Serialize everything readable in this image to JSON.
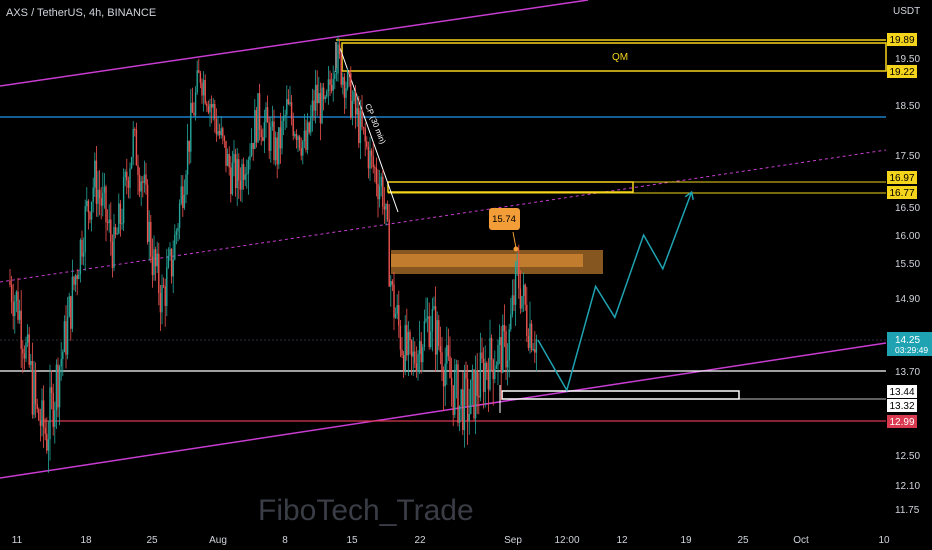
{
  "header": {
    "title": "AXS / TetherUS, 4h, BINANCE"
  },
  "watermark": "FiboTech_Trade",
  "colors": {
    "background": "#000000",
    "up_candle": "#26a69a",
    "down_candle": "#ef5350",
    "channel": "#c83cd2",
    "zone": "#f5d41c",
    "blue_line": "#2196f3",
    "orange_box": "#f29d38",
    "projection": "#1fa3b2",
    "support_red": "#d93a50"
  },
  "chart_data": {
    "type": "candlestick",
    "symbol": "AXS / TetherUS",
    "timeframe": "4h",
    "exchange": "BINANCE",
    "y_unit": "USDT",
    "x_tick_labels": [
      "11",
      "18",
      "25",
      "Aug",
      "8",
      "15",
      "22",
      "Sep",
      "12:00",
      "12",
      "19",
      "25",
      "Oct",
      "10"
    ],
    "y_tick_labels": [
      "19.50",
      "18.50",
      "17.50",
      "16.50",
      "16.00",
      "15.50",
      "14.90",
      "13.70",
      "12.50",
      "12.10",
      "11.75"
    ],
    "price_badges": [
      {
        "value": "19.89",
        "style": "zone"
      },
      {
        "value": "19.22",
        "style": "zone"
      },
      {
        "value": "16.97",
        "style": "zone"
      },
      {
        "value": "16.77",
        "style": "zone"
      },
      {
        "value": "14.25",
        "sub": "03:29:49",
        "style": "last"
      },
      {
        "value": "13.44",
        "style": "white"
      },
      {
        "value": "13.32",
        "style": "white"
      },
      {
        "value": "12.99",
        "style": "red"
      }
    ],
    "annotations": {
      "qm_label": "QM",
      "trendline_label": "CP (30 min)",
      "orange_callout": "15.74"
    },
    "price_path": [
      [
        "Jul 11",
        15.2
      ],
      [
        "Jul 12",
        14.8
      ],
      [
        "Jul 13",
        13.9
      ],
      [
        "Jul 14",
        13.1
      ],
      [
        "Jul 15",
        12.8
      ],
      [
        "Jul 16",
        13.6
      ],
      [
        "Jul 17",
        14.3
      ],
      [
        "Jul 18",
        15.3
      ],
      [
        "Jul 19",
        16.3
      ],
      [
        "Jul 20",
        17.0
      ],
      [
        "Jul 21",
        16.4
      ],
      [
        "Jul 22",
        15.7
      ],
      [
        "Jul 23",
        16.6
      ],
      [
        "Jul 24",
        17.8
      ],
      [
        "Jul 25",
        16.9
      ],
      [
        "Jul 26",
        15.6
      ],
      [
        "Jul 27",
        14.9
      ],
      [
        "Jul 28",
        15.5
      ],
      [
        "Jul 29",
        16.7
      ],
      [
        "Jul 30",
        18.1
      ],
      [
        "Jul 31",
        19.2
      ],
      [
        "Aug 1",
        18.6
      ],
      [
        "Aug 2",
        17.9
      ],
      [
        "Aug 3",
        17.2
      ],
      [
        "Aug 4",
        17.0
      ],
      [
        "Aug 5",
        17.6
      ],
      [
        "Aug 6",
        18.3
      ],
      [
        "Aug 7",
        18.0
      ],
      [
        "Aug 8",
        17.5
      ],
      [
        "Aug 9",
        18.4
      ],
      [
        "Aug 10",
        18.1
      ],
      [
        "Aug 11",
        17.6
      ],
      [
        "Aug 12",
        18.7
      ],
      [
        "Aug 13",
        18.3
      ],
      [
        "Aug 14",
        19.6
      ],
      [
        "Aug 15",
        19.1
      ],
      [
        "Aug 16",
        18.4
      ],
      [
        "Aug 17",
        17.8
      ],
      [
        "Aug 18",
        17.2
      ],
      [
        "Aug 19",
        16.8
      ],
      [
        "Aug 20",
        14.9
      ],
      [
        "Aug 21",
        14.2
      ],
      [
        "Aug 22",
        13.8
      ],
      [
        "Aug 23",
        14.3
      ],
      [
        "Aug 24",
        14.6
      ],
      [
        "Aug 25",
        14.1
      ],
      [
        "Aug 26",
        13.6
      ],
      [
        "Aug 27",
        13.3
      ],
      [
        "Aug 28",
        13.2
      ],
      [
        "Aug 29",
        13.6
      ],
      [
        "Aug 30",
        13.9
      ],
      [
        "Aug 31",
        14.0
      ],
      [
        "Sep 1",
        14.1
      ],
      [
        "Sep 2",
        15.3
      ],
      [
        "Sep 3",
        14.6
      ],
      [
        "Sep 4",
        14.25
      ]
    ],
    "projection_path": [
      [
        "Sep 4",
        14.25
      ],
      [
        "Sep 7",
        13.45
      ],
      [
        "Sep 10",
        15.1
      ],
      [
        "Sep 12",
        14.6
      ],
      [
        "Sep 15",
        16.0
      ],
      [
        "Sep 17",
        15.4
      ],
      [
        "Sep 20",
        16.77
      ]
    ],
    "zones": {
      "qm": [
        19.22,
        19.89
      ],
      "upper": [
        16.77,
        16.97
      ],
      "orange": [
        15.45,
        15.74
      ],
      "lower": [
        13.32,
        13.44
      ],
      "support": 12.99,
      "white_line": 13.7,
      "blue_line": 18.3
    },
    "grid": false,
    "legend": "none"
  }
}
